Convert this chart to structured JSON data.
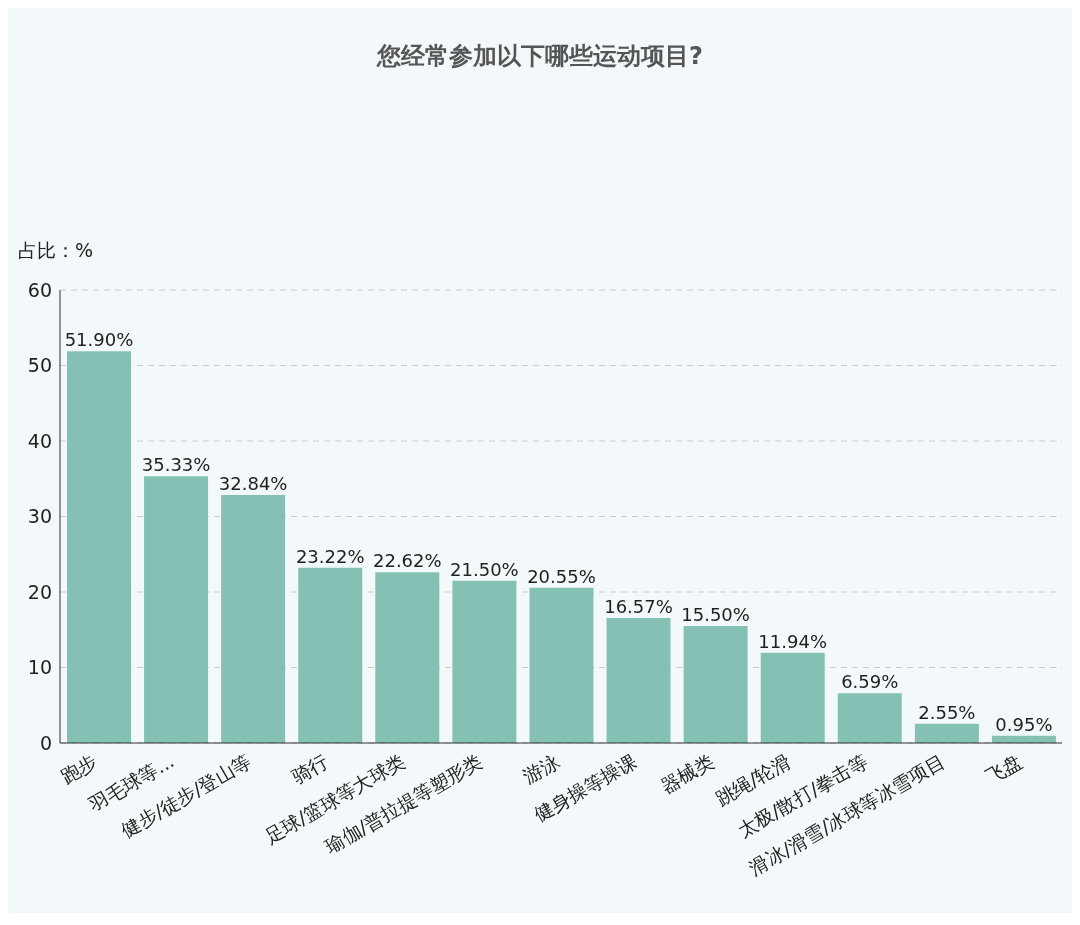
{
  "chart_data": {
    "type": "bar",
    "title": "您经常参加以下哪些运动项目?",
    "ylabel": "占比：%",
    "categories": [
      "跑步",
      "羽毛球等...",
      "健步/徒步/登山等",
      "骑行",
      "足球/篮球等大球类",
      "瑜伽/普拉提等塑形类",
      "游泳",
      "健身操等操课",
      "器械类",
      "跳绳/轮滑",
      "太极/散打/拳击等",
      "滑冰/滑雪/冰球等冰雪项目",
      "飞盘"
    ],
    "values": [
      51.9,
      35.33,
      32.84,
      23.22,
      22.62,
      21.5,
      20.55,
      16.57,
      15.5,
      11.94,
      6.59,
      2.55,
      0.95
    ],
    "value_labels": [
      "51.90%",
      "35.33%",
      "32.84%",
      "23.22%",
      "22.62%",
      "21.50%",
      "20.55%",
      "16.57%",
      "15.50%",
      "11.94%",
      "6.59%",
      "2.55%",
      "0.95%"
    ],
    "color": "#84c1b4",
    "ylim": [
      0,
      60
    ],
    "yticks": [
      0,
      10,
      20,
      30,
      40,
      50,
      60
    ],
    "grid": "y"
  }
}
